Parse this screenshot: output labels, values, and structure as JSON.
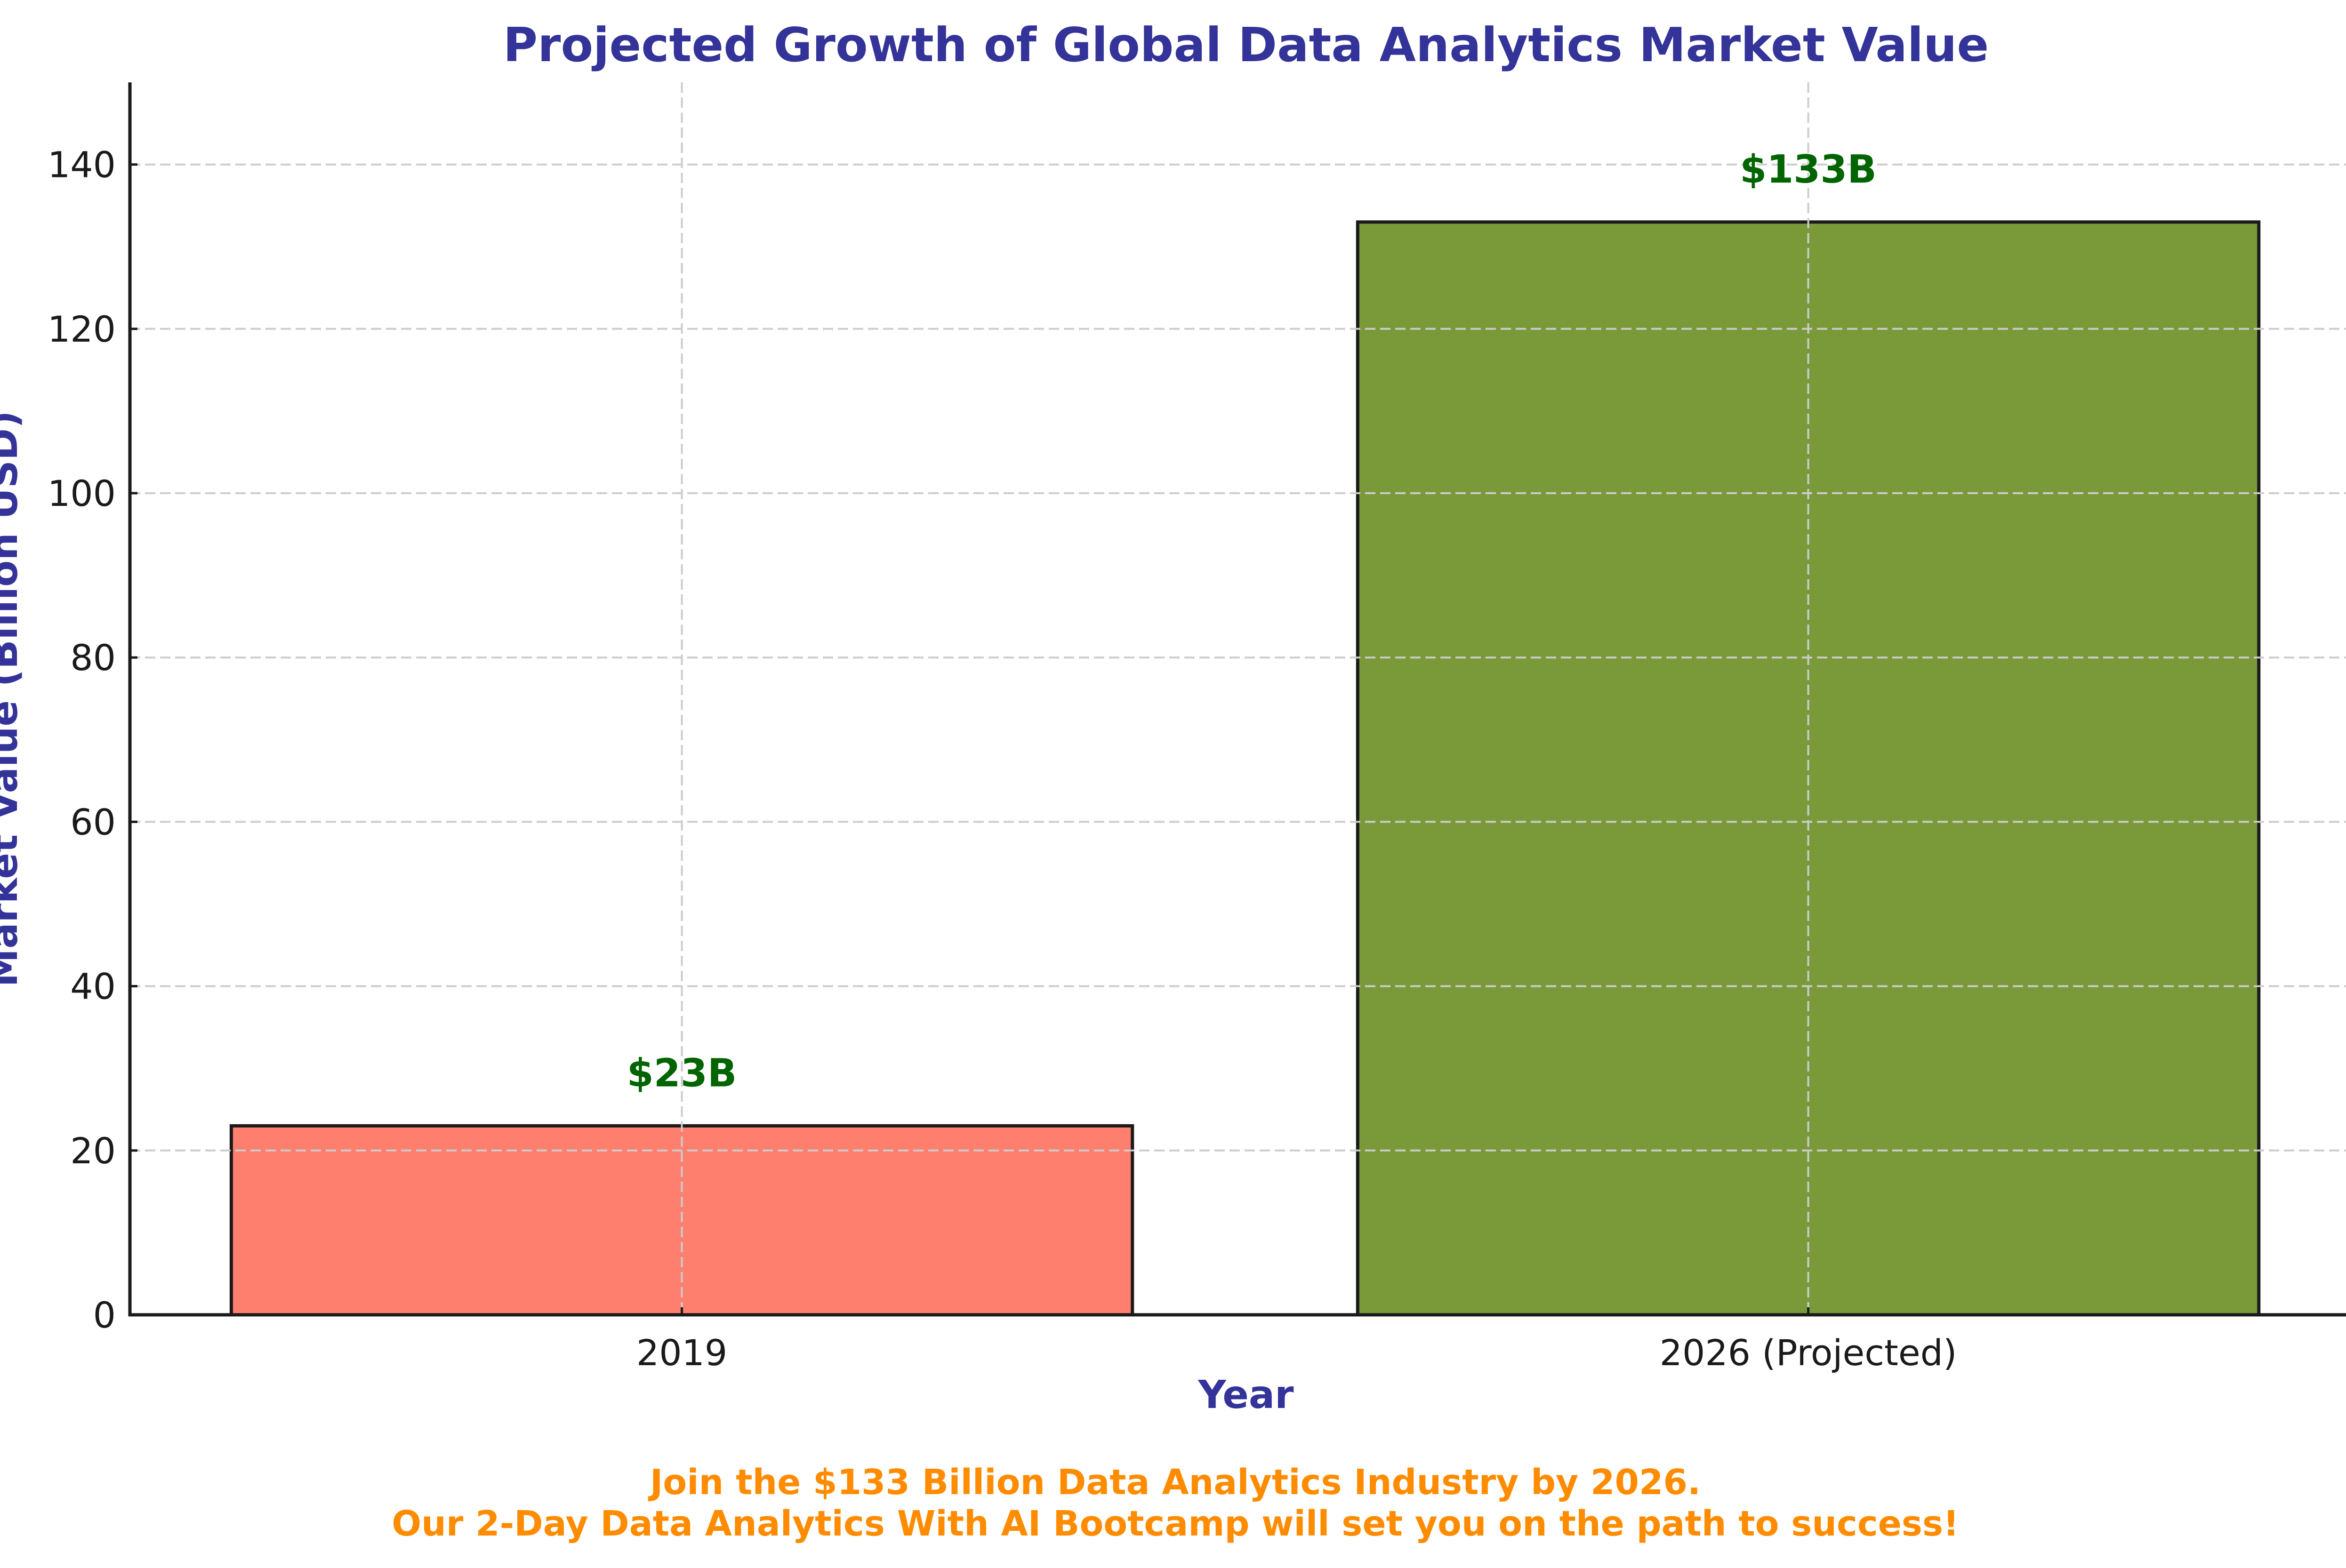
{
  "chart_data": {
    "type": "bar",
    "title": "Projected Growth of Global Data Analytics Market Value",
    "xlabel": "Year",
    "ylabel": "Market Value (Billion USD)",
    "categories": [
      "2019",
      "2026 (Projected)"
    ],
    "values": [
      23,
      133
    ],
    "data_labels": [
      "$23B",
      "$133B"
    ],
    "bar_colors": [
      "#ff7f6f",
      "#7a9a3a"
    ],
    "bar_edge_color": "#1a1a1a",
    "ylim": [
      0,
      150
    ],
    "yticks": [
      0,
      20,
      40,
      60,
      80,
      100,
      120,
      140
    ],
    "ytick_labels": [
      "0",
      "20",
      "40",
      "60",
      "80",
      "100",
      "120",
      "140"
    ],
    "grid": true,
    "grid_style": "dashed",
    "footer_lines": [
      "Join the $133 Billion Data Analytics Industry by 2026.",
      "Our 2-Day Data Analytics With AI Bootcamp will set you on the path to success!"
    ],
    "colors": {
      "title": "#333399",
      "axis_title": "#333399",
      "data_label": "#006400",
      "footer": "#ff8c00",
      "grid": "#cccccc",
      "axis": "#1a1a1a"
    }
  }
}
